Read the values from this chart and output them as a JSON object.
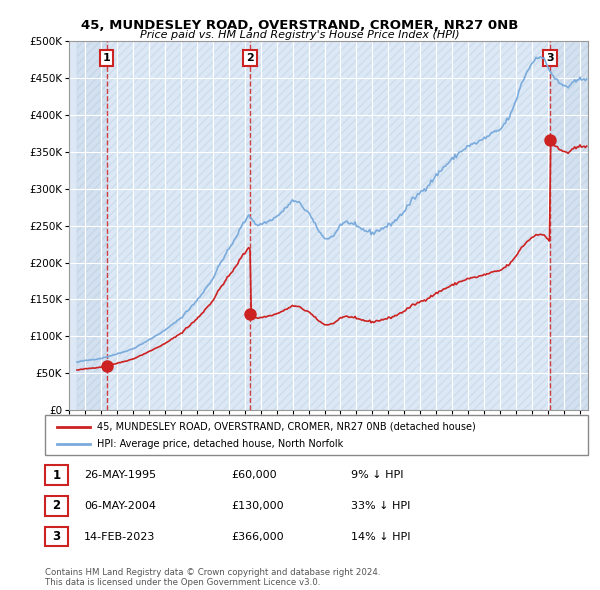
{
  "title_line1": "45, MUNDESLEY ROAD, OVERSTRAND, CROMER, NR27 0NB",
  "title_line2": "Price paid vs. HM Land Registry's House Price Index (HPI)",
  "xlim": [
    1993.5,
    2025.5
  ],
  "ylim": [
    0,
    500000
  ],
  "yticks": [
    0,
    50000,
    100000,
    150000,
    200000,
    250000,
    300000,
    350000,
    400000,
    450000,
    500000
  ],
  "ytick_labels": [
    "£0",
    "£50K",
    "£100K",
    "£150K",
    "£200K",
    "£250K",
    "£300K",
    "£350K",
    "£400K",
    "£450K",
    "£500K"
  ],
  "hpi_color": "#7aabdc",
  "price_color": "#cc2222",
  "dot_color": "#cc2222",
  "background_plot": "#dce8f5",
  "vline_color": "#cc2222",
  "sale_dates": [
    1995.37,
    2004.34,
    2023.12
  ],
  "sale_prices": [
    60000,
    130000,
    366000
  ],
  "sale_labels": [
    "1",
    "2",
    "3"
  ],
  "legend_label1": "45, MUNDESLEY ROAD, OVERSTRAND, CROMER, NR27 0NB (detached house)",
  "legend_label2": "HPI: Average price, detached house, North Norfolk",
  "table_rows": [
    [
      "1",
      "26-MAY-1995",
      "£60,000",
      "9% ↓ HPI"
    ],
    [
      "2",
      "06-MAY-2004",
      "£130,000",
      "33% ↓ HPI"
    ],
    [
      "3",
      "14-FEB-2023",
      "£366,000",
      "14% ↓ HPI"
    ]
  ],
  "footnote": "Contains HM Land Registry data © Crown copyright and database right 2024.\nThis data is licensed under the Open Government Licence v3.0."
}
